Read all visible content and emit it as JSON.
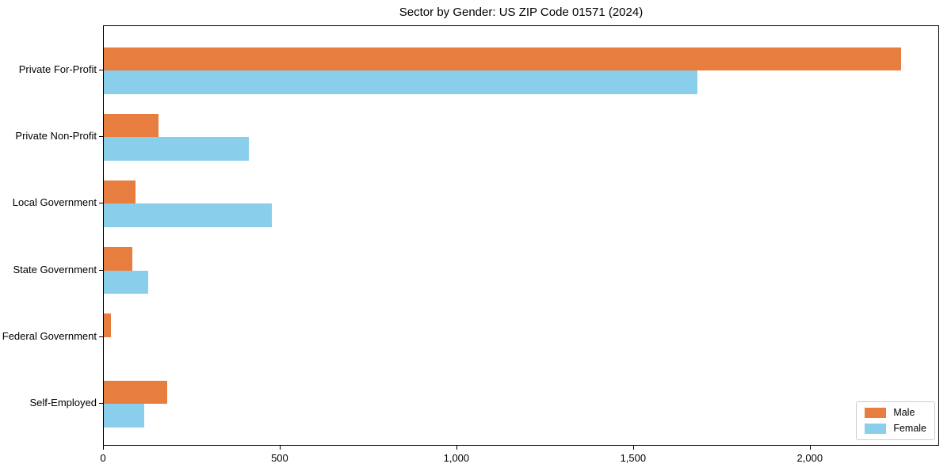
{
  "title": "Sector by Gender: US ZIP Code 01571 (2024)",
  "chart_data": {
    "type": "bar",
    "orientation": "horizontal",
    "title": "Sector by Gender: US ZIP Code 01571 (2024)",
    "categories": [
      "Private For-Profit",
      "Private Non-Profit",
      "Local Government",
      "State Government",
      "Federal Government",
      "Self-Employed"
    ],
    "series": [
      {
        "name": "Male",
        "color": "#E77D3E",
        "values": [
          2255,
          155,
          90,
          80,
          20,
          180
        ]
      },
      {
        "name": "Female",
        "color": "#89CEEA",
        "values": [
          1680,
          410,
          475,
          125,
          0,
          115
        ]
      }
    ],
    "xlabel": "",
    "ylabel": "",
    "xlim": [
      0,
      2366
    ],
    "xticks": [
      0,
      500,
      1000,
      1500,
      2000
    ],
    "xtick_labels": [
      "0",
      "500",
      "1,000",
      "1,500",
      "2,000"
    ],
    "grid": false,
    "legend_position": "lower right"
  },
  "legend": {
    "items": [
      {
        "label": "Male",
        "color": "#E77D3E"
      },
      {
        "label": "Female",
        "color": "#89CEEA"
      }
    ]
  }
}
